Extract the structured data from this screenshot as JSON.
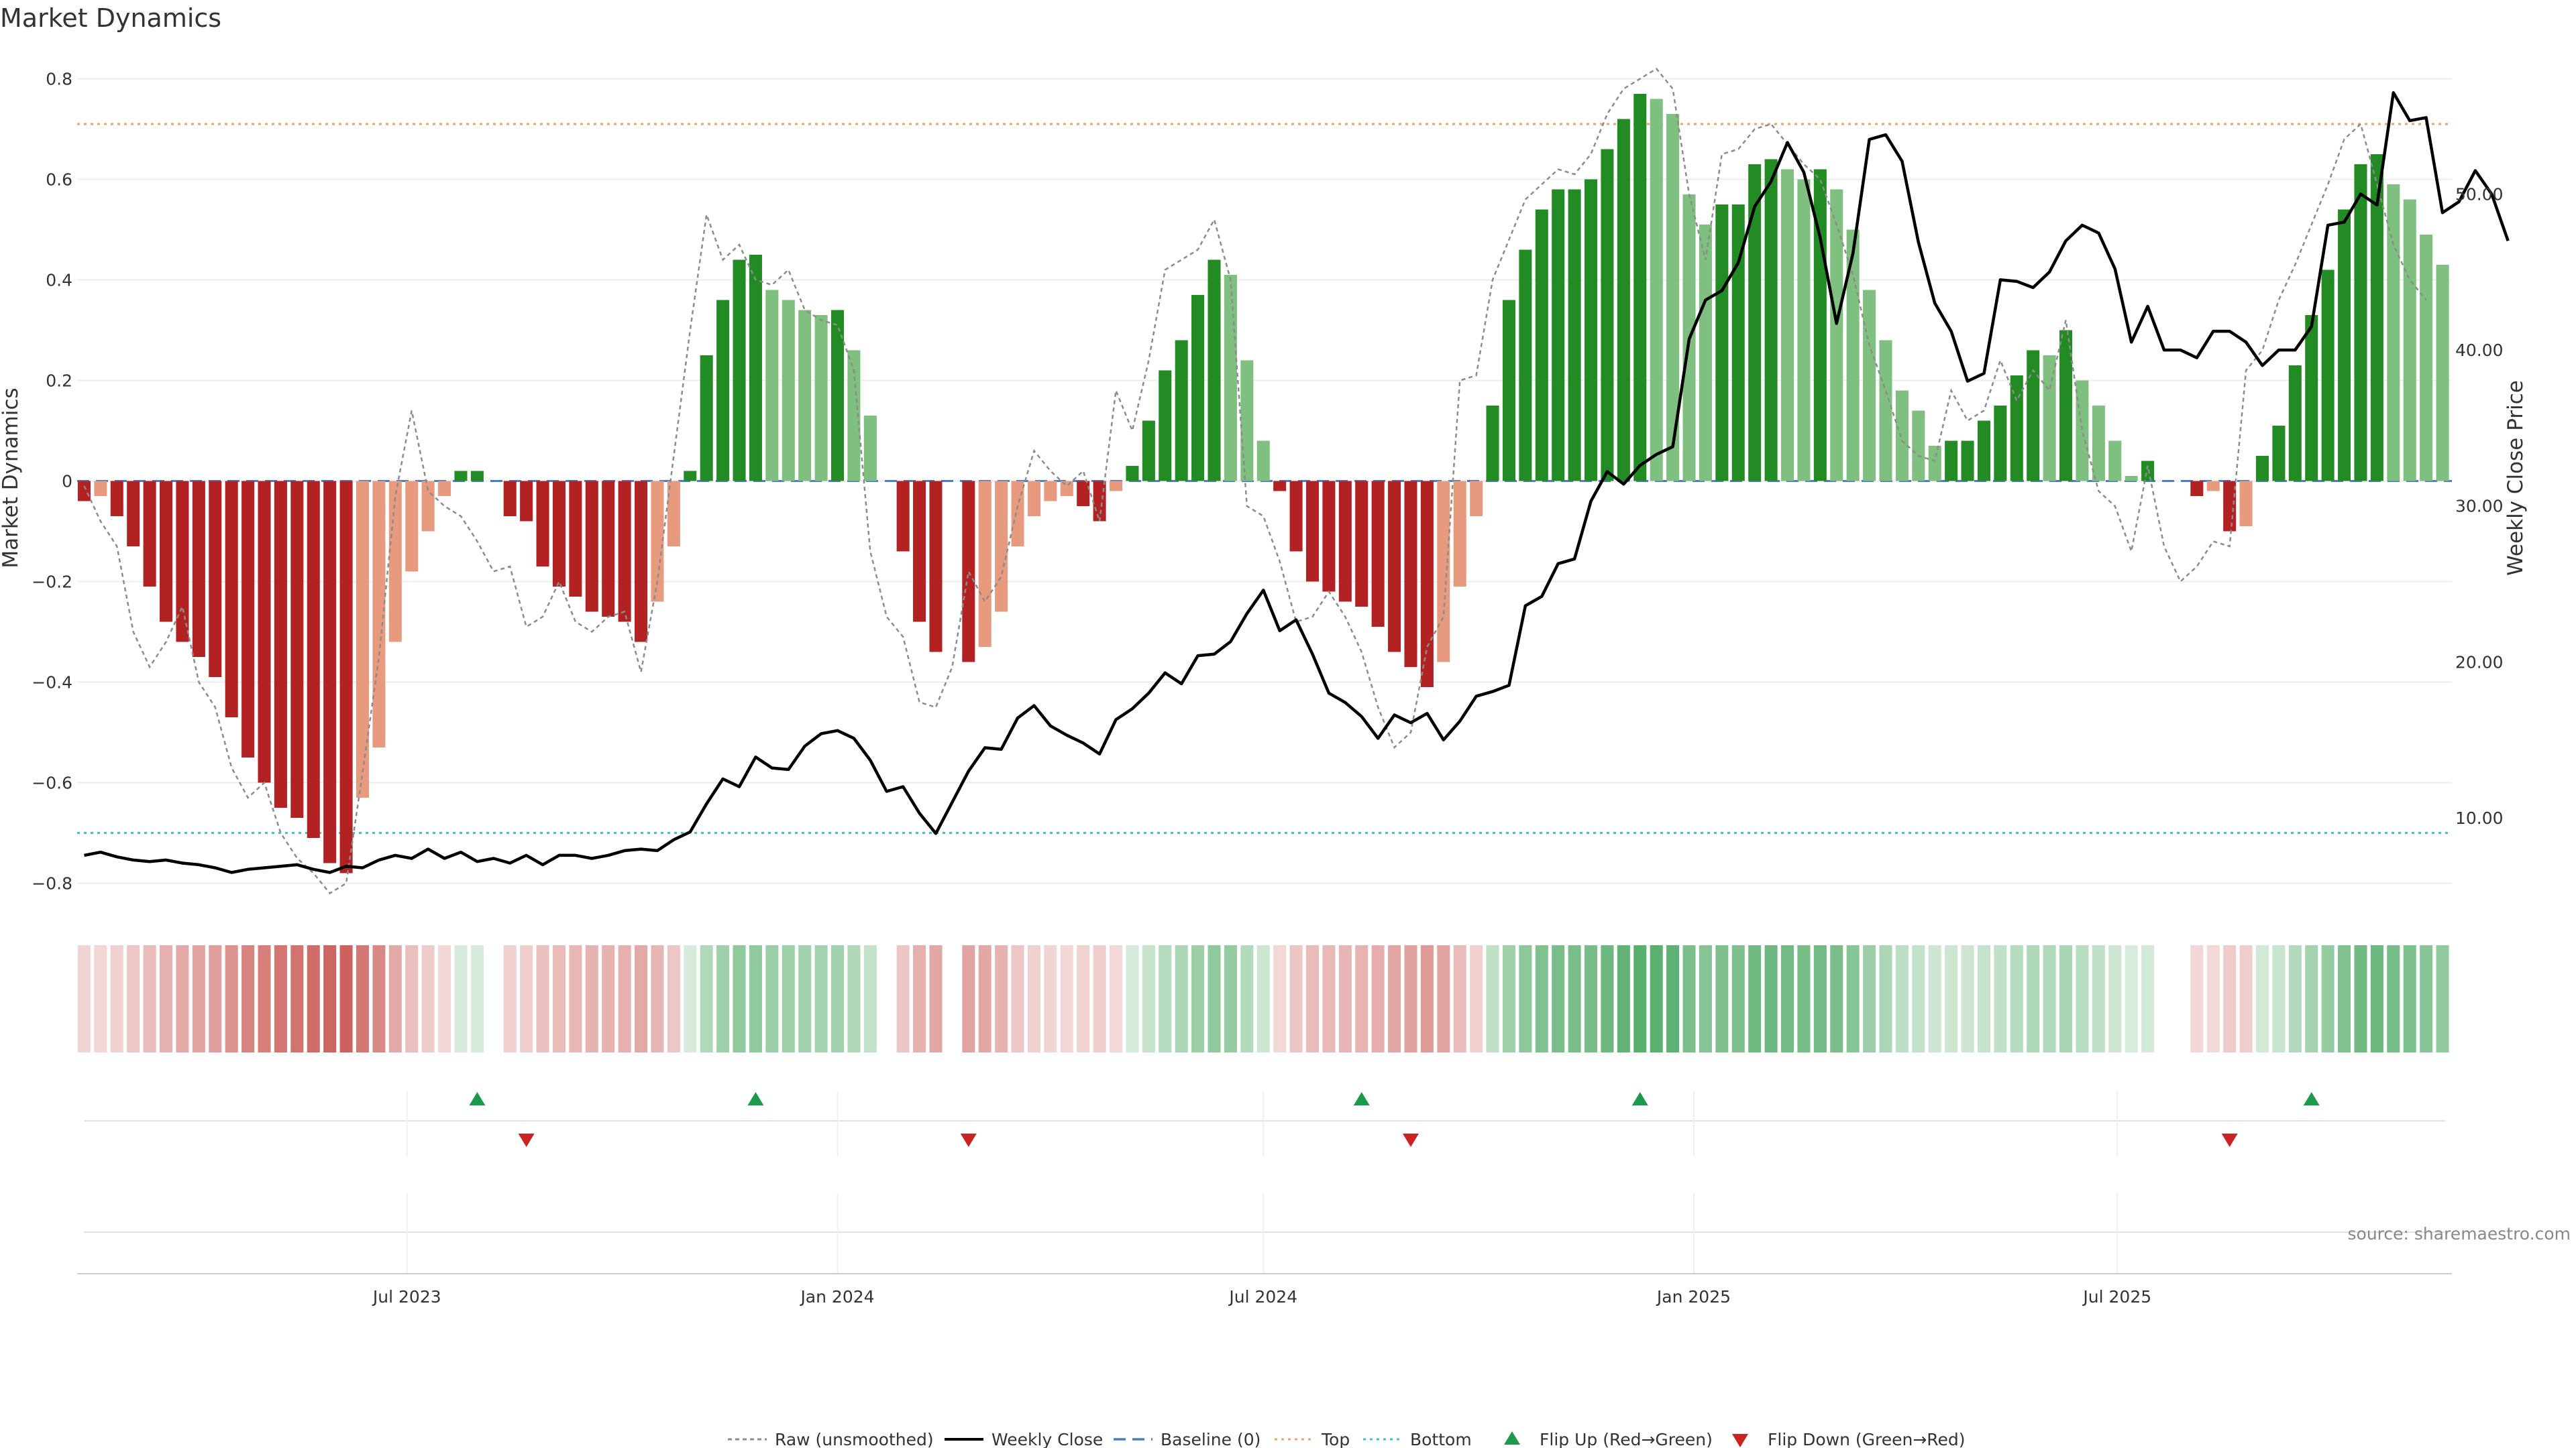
{
  "chart_data": {
    "type": "bar",
    "title": "Market Dynamics",
    "ylabel_left": "Market Dynamics",
    "ylabel_right": "Weekly Close Price",
    "source": "source: sharemaestro.com",
    "left_ylim": [
      -0.85,
      0.85
    ],
    "left_ticks": [
      -0.8,
      -0.6,
      -0.4,
      -0.2,
      0,
      0.2,
      0.4,
      0.6,
      0.8
    ],
    "left_tick_labels": [
      "−0.8",
      "−0.6",
      "−0.4",
      "−0.2",
      "0",
      "0.2",
      "0.4",
      "0.6",
      "0.8"
    ],
    "right_ylim": [
      4.2,
      59
    ],
    "right_ticks": [
      10,
      20,
      30,
      40,
      50
    ],
    "right_tick_labels": [
      "10.00",
      "20.00",
      "30.00",
      "40.00",
      "50.00"
    ],
    "top_level": 0.71,
    "bottom_level": -0.7,
    "x_start_date": "2023-02-13",
    "x_interval_days": 7,
    "x_range": [
      "2023-02-10",
      "2025-11-21"
    ],
    "x_ticks": [
      {
        "date": "2023-07-01",
        "label": "Jul 2023"
      },
      {
        "date": "2024-01-01",
        "label": "Jan 2024"
      },
      {
        "date": "2024-07-01",
        "label": "Jul 2024"
      },
      {
        "date": "2025-01-01",
        "label": "Jan 2025"
      },
      {
        "date": "2025-07-01",
        "label": "Jul 2025"
      }
    ],
    "bars": [
      -0.04,
      -0.03,
      -0.07,
      -0.13,
      -0.21,
      -0.28,
      -0.32,
      -0.35,
      -0.39,
      -0.47,
      -0.55,
      -0.6,
      -0.65,
      -0.67,
      -0.71,
      -0.76,
      -0.78,
      -0.63,
      -0.53,
      -0.32,
      -0.18,
      -0.1,
      -0.03,
      0.02,
      0.02,
      0,
      -0.07,
      -0.08,
      -0.17,
      -0.21,
      -0.23,
      -0.26,
      -0.27,
      -0.28,
      -0.32,
      -0.24,
      -0.13,
      0.02,
      0.25,
      0.36,
      0.44,
      0.45,
      0.38,
      0.36,
      0.34,
      0.33,
      0.34,
      0.26,
      0.13,
      0,
      -0.14,
      -0.28,
      -0.34,
      0,
      -0.36,
      -0.33,
      -0.26,
      -0.13,
      -0.07,
      -0.04,
      -0.03,
      -0.05,
      -0.08,
      -0.02,
      0.03,
      0.12,
      0.22,
      0.28,
      0.37,
      0.44,
      0.41,
      0.24,
      0.08,
      -0.02,
      -0.14,
      -0.2,
      -0.22,
      -0.24,
      -0.25,
      -0.29,
      -0.34,
      -0.37,
      -0.41,
      -0.36,
      -0.21,
      -0.07,
      0.15,
      0.36,
      0.46,
      0.54,
      0.58,
      0.58,
      0.6,
      0.66,
      0.72,
      0.77,
      0.76,
      0.73,
      0.57,
      0.51,
      0.55,
      0.55,
      0.63,
      0.64,
      0.62,
      0.6,
      0.62,
      0.58,
      0.5,
      0.38,
      0.28,
      0.18,
      0.14,
      0.07,
      0.08,
      0.08,
      0.12,
      0.15,
      0.21,
      0.26,
      0.25,
      0.3,
      0.2,
      0.15,
      0.08,
      0.01,
      0.04,
      0,
      0,
      -0.03,
      -0.02,
      -0.1,
      -0.09,
      0.05,
      0.11,
      0.23,
      0.33,
      0.42,
      0.54,
      0.63,
      0.65,
      0.59,
      0.56,
      0.49,
      0.43
    ],
    "raw": [
      -0.01,
      -0.08,
      -0.13,
      -0.3,
      -0.37,
      -0.32,
      -0.25,
      -0.4,
      -0.45,
      -0.57,
      -0.63,
      -0.6,
      -0.7,
      -0.75,
      -0.78,
      -0.82,
      -0.8,
      -0.58,
      -0.35,
      -0.03,
      0.14,
      -0.02,
      -0.05,
      -0.07,
      -0.12,
      -0.18,
      -0.17,
      -0.29,
      -0.27,
      -0.2,
      -0.28,
      -0.3,
      -0.27,
      -0.26,
      -0.38,
      -0.2,
      0.05,
      0.3,
      0.53,
      0.44,
      0.47,
      0.4,
      0.39,
      0.42,
      0.34,
      0.32,
      0.31,
      0.22,
      -0.14,
      -0.27,
      -0.31,
      -0.44,
      -0.45,
      -0.37,
      -0.18,
      -0.24,
      -0.19,
      -0.05,
      0.06,
      0.02,
      -0.01,
      0.02,
      -0.08,
      0.18,
      0.1,
      0.24,
      0.42,
      0.44,
      0.46,
      0.52,
      0.4,
      -0.05,
      -0.07,
      -0.16,
      -0.28,
      -0.27,
      -0.22,
      -0.27,
      -0.34,
      -0.45,
      -0.53,
      -0.5,
      -0.33,
      -0.27,
      0.2,
      0.21,
      0.4,
      0.48,
      0.56,
      0.59,
      0.62,
      0.61,
      0.65,
      0.73,
      0.78,
      0.8,
      0.82,
      0.78,
      0.57,
      0.44,
      0.65,
      0.66,
      0.7,
      0.71,
      0.67,
      0.63,
      0.6,
      0.51,
      0.41,
      0.27,
      0.18,
      0.08,
      0.05,
      0.04,
      0.18,
      0.12,
      0.14,
      0.24,
      0.16,
      0.22,
      0.18,
      0.32,
      0.1,
      -0.02,
      -0.05,
      -0.14,
      0.03,
      -0.13,
      -0.2,
      -0.17,
      -0.12,
      -0.13,
      0.22,
      0.26,
      0.36,
      0.43,
      0.51,
      0.59,
      0.68,
      0.71,
      0.59,
      0.47,
      0.4,
      0.36
    ],
    "price": [
      7.6,
      7.8,
      7.5,
      7.3,
      7.2,
      7.3,
      7.1,
      7.0,
      6.8,
      6.5,
      6.7,
      6.8,
      6.9,
      7.0,
      6.7,
      6.5,
      6.9,
      6.8,
      7.3,
      7.6,
      7.4,
      8.0,
      7.4,
      7.8,
      7.2,
      7.4,
      7.1,
      7.6,
      7.0,
      7.6,
      7.6,
      7.4,
      7.6,
      7.9,
      8.0,
      7.9,
      8.6,
      9.1,
      10.9,
      12.5,
      12.0,
      13.9,
      13.2,
      13.1,
      14.6,
      15.4,
      15.6,
      15.1,
      13.7,
      11.7,
      12.0,
      10.3,
      9.0,
      11.0,
      13.0,
      14.5,
      14.4,
      16.4,
      17.2,
      15.9,
      15.3,
      14.8,
      14.1,
      16.3,
      17.0,
      18.0,
      19.3,
      18.6,
      20.4,
      20.5,
      21.3,
      23.1,
      24.6,
      22.0,
      22.7,
      20.5,
      18.0,
      17.4,
      16.5,
      15.1,
      16.6,
      16.1,
      16.7,
      15.0,
      16.2,
      17.8,
      18.1,
      18.5,
      23.6,
      24.2,
      26.3,
      26.6,
      30.3,
      32.2,
      31.4,
      32.6,
      33.3,
      33.8,
      40.7,
      43.2,
      43.8,
      45.6,
      49.2,
      50.8,
      53.3,
      51.4,
      47.2,
      41.7,
      46.2,
      53.5,
      53.8,
      52.1,
      46.9,
      43.0,
      41.2,
      38.0,
      38.5,
      44.5,
      44.4,
      44.0,
      45.0,
      47.0,
      48.0,
      47.5,
      45.2,
      40.5,
      42.8,
      40.0,
      40.0,
      39.5,
      41.2,
      41.2,
      40.5,
      39.0,
      40.0,
      40.0,
      41.5,
      48.0,
      48.2,
      50.0,
      49.3,
      56.5,
      54.7,
      54.9,
      48.8,
      49.5,
      51.5,
      50.0,
      47.0
    ],
    "flip_up_dates": [
      "2023-07-31",
      "2023-11-27",
      "2024-08-12",
      "2024-12-09",
      "2025-09-22"
    ],
    "flip_down_dates": [
      "2023-08-21",
      "2024-02-26",
      "2024-09-02",
      "2025-08-18"
    ],
    "colors": {
      "pos_strong": "#238b23",
      "pos_weak": "#7fbf7f",
      "neg_strong": "#b22222",
      "neg_weak": "#e89a7e",
      "price_line": "#000000",
      "raw_line": "#8c8c8c",
      "baseline": "#4a7fbf",
      "top_line": "#f0a070",
      "bottom_line": "#40c0d0",
      "flip_up": "#1a9a4a",
      "flip_down": "#cc2222"
    }
  },
  "legend": {
    "raw": "Raw (unsmoothed)",
    "weekly_close": "Weekly Close",
    "baseline": "Baseline (0)",
    "top": "Top",
    "bottom": "Bottom",
    "flip_up": "Flip Up (Red→Green)",
    "flip_down": "Flip Down (Green→Red)"
  }
}
